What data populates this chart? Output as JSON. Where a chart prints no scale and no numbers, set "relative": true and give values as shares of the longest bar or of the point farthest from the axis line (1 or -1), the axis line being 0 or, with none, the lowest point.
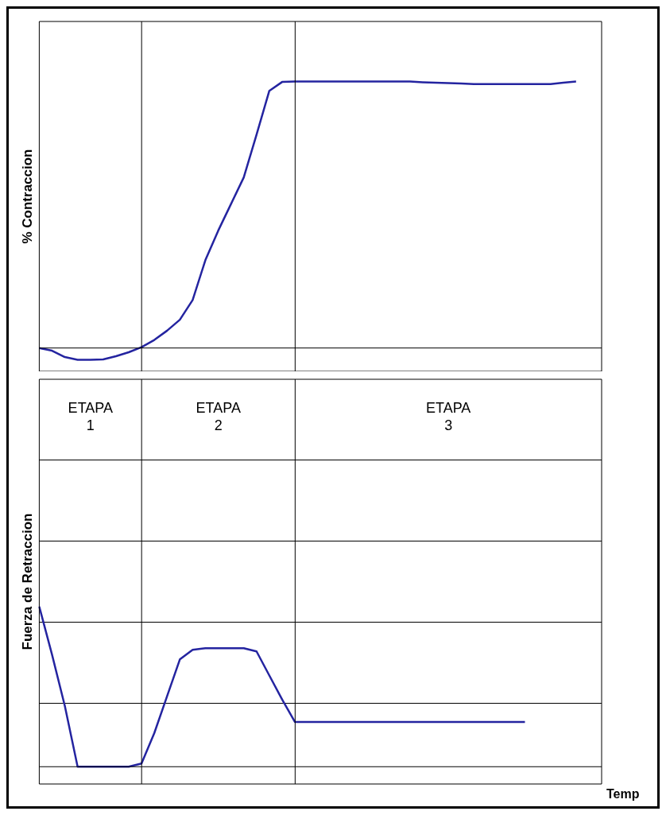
{
  "chart_data": [
    {
      "type": "line",
      "ylabel": "% Contraccion",
      "relative": true,
      "grid": false,
      "legend": false,
      "categories": [
        null,
        null,
        null,
        null,
        null,
        null,
        null,
        null,
        null,
        null,
        null,
        null,
        null,
        null,
        null,
        null,
        null,
        null,
        null,
        null,
        null,
        null,
        null,
        null,
        null,
        null,
        null,
        null,
        null,
        null,
        null,
        null,
        null,
        null,
        null,
        null,
        null,
        null,
        null,
        null,
        null,
        null,
        null,
        null,
        null
      ],
      "series": [
        {
          "color": "#2424a0",
          "values": [
            0,
            -0.01,
            -0.034,
            -0.044,
            -0.044,
            -0.043,
            -0.031,
            -0.016,
            0.003,
            0.03,
            0.065,
            0.106,
            0.18,
            0.33,
            0.44,
            0.54,
            0.64,
            0.8,
            0.965,
            0.998,
            1,
            1,
            1,
            1,
            1,
            1,
            1,
            1,
            1,
            1,
            0.997,
            0.995,
            0.994,
            0.992,
            0.99,
            0.99,
            0.99,
            0.99,
            0.99,
            0.99,
            0.99,
            0.995,
            1,
            null,
            null
          ]
        }
      ]
    },
    {
      "type": "line",
      "ylabel": "Fuerza de Retraccion",
      "xlabel": "Temp",
      "relative": true,
      "legend": false,
      "categories": [
        null,
        null,
        null,
        null,
        null,
        null,
        null,
        null,
        null,
        null,
        null,
        null,
        null,
        null,
        null,
        null,
        null,
        null,
        null,
        null,
        null,
        null,
        null,
        null,
        null,
        null,
        null,
        null,
        null,
        null,
        null,
        null,
        null,
        null,
        null,
        null,
        null,
        null,
        null,
        null,
        null,
        null,
        null,
        null,
        null
      ],
      "series": [
        {
          "color": "#2424a0",
          "values": [
            1,
            0.7,
            0.38,
            0,
            0,
            0,
            0,
            0,
            0.02,
            0.21,
            0.44,
            0.67,
            0.73,
            0.74,
            0.74,
            0.74,
            0.74,
            0.72,
            0.57,
            0.42,
            0.28,
            0.28,
            0.28,
            0.28,
            0.28,
            0.28,
            0.28,
            0.28,
            0.28,
            0.28,
            0.28,
            0.28,
            0.28,
            0.28,
            0.28,
            0.28,
            0.28,
            0.28,
            0.28,
            null,
            null,
            null,
            null,
            null,
            null
          ]
        }
      ],
      "annotations": [
        "ETAPA 1",
        "ETAPA 2",
        "ETAPA 3"
      ]
    }
  ]
}
